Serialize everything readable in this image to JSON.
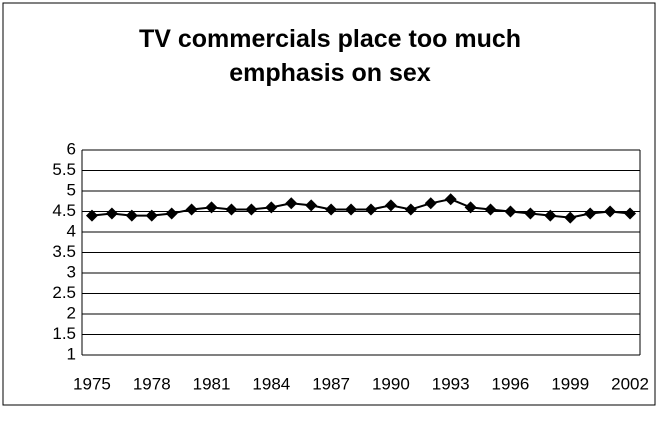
{
  "chart_data": {
    "type": "line",
    "title": "TV commercials place too much emphasis on sex",
    "categories": [
      "1975",
      null,
      null,
      "1978",
      null,
      null,
      "1981",
      null,
      null,
      "1984",
      null,
      null,
      "1987",
      null,
      null,
      "1990",
      null,
      null,
      "1993",
      null,
      null,
      "1996",
      null,
      null,
      "1999",
      null,
      null,
      "2002"
    ],
    "series": [
      {
        "name": "TV commercials place too much emphasis on sex",
        "color": "#000000",
        "values": [
          4.4,
          4.45,
          4.4,
          4.4,
          4.45,
          4.55,
          4.6,
          4.55,
          4.55,
          4.6,
          4.7,
          4.65,
          4.55,
          4.55,
          4.55,
          4.65,
          4.55,
          4.7,
          4.8,
          4.6,
          4.55,
          4.5,
          4.45,
          4.4,
          4.35,
          4.45,
          4.5,
          4.45
        ]
      }
    ],
    "ylim": [
      1,
      6
    ],
    "yticks": [
      1,
      1.5,
      2,
      2.5,
      3,
      3.5,
      4,
      4.5,
      5,
      5.5,
      6
    ],
    "grid": true,
    "legend": false
  }
}
